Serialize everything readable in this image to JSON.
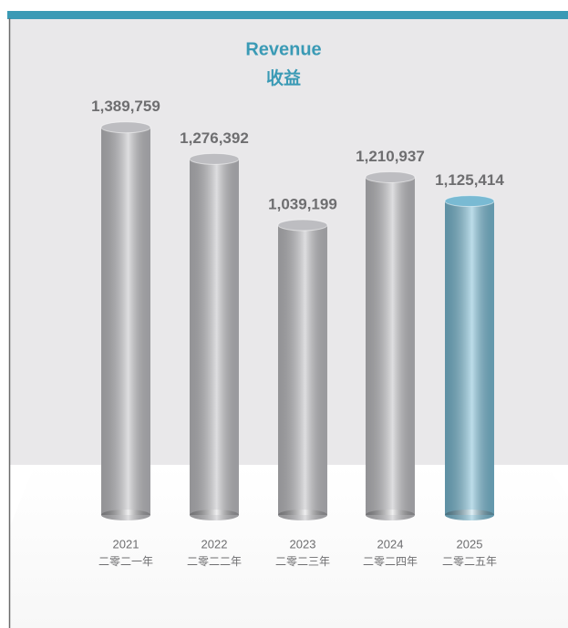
{
  "chart_data": {
    "type": "bar",
    "title": "Revenue",
    "subtitle": "收益",
    "categories": [
      "2021",
      "2022",
      "2023",
      "2024",
      "2025"
    ],
    "categories_zh": [
      "二零二一年",
      "二零二二年",
      "二零二三年",
      "二零二四年",
      "二零二五年"
    ],
    "values": [
      1389759,
      1276392,
      1039199,
      1210937,
      1125414
    ],
    "value_labels": [
      "1,389,759",
      "1,276,392",
      "1,039,199",
      "1,210,937",
      "1,125,414"
    ],
    "colors": [
      "#bdbdc1",
      "#bdbdc1",
      "#bdbdc1",
      "#bdbdc1",
      "#79bad3"
    ],
    "ylim": [
      0,
      1500000
    ]
  }
}
